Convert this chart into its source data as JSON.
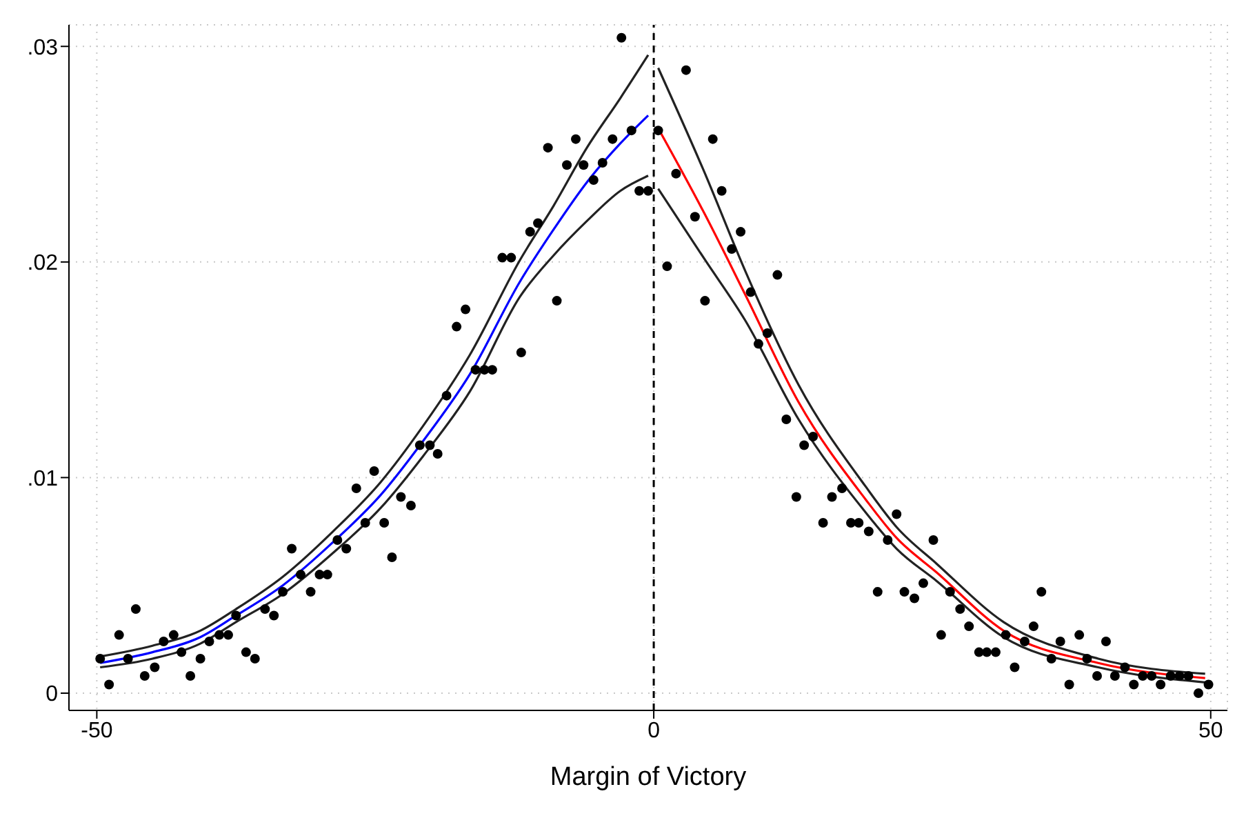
{
  "chart_data": {
    "type": "scatter",
    "xlabel": "Margin of Victory",
    "xlim": [
      -52.5,
      51.5
    ],
    "ylim": [
      -0.0008,
      0.031
    ],
    "xticks": [
      -50,
      0,
      50
    ],
    "yticks": [
      {
        "value": 0,
        "label": "0"
      },
      {
        "value": 0.01,
        "label": ".01"
      },
      {
        "value": 0.02,
        "label": ".02"
      },
      {
        "value": 0.03,
        "label": ".03"
      }
    ],
    "grid": true,
    "ref_lines": [
      {
        "axis": "x",
        "value": 0,
        "label": null,
        "color": "#000000",
        "line_style": "dashed"
      }
    ],
    "series": [
      {
        "color": "#000000",
        "marker": "circle",
        "x": [
          -49.7,
          -48.9,
          -48,
          -47.2,
          -46.5,
          -45.7,
          -44.8,
          -44,
          -43.1,
          -42.4,
          -41.6,
          -40.7,
          -39.9,
          -39,
          -38.2,
          -37.5,
          -36.6,
          -35.8,
          -34.9,
          -34.1,
          -33.3,
          -32.5,
          -31.7,
          -30.8,
          -30,
          -29.3,
          -28.4,
          -27.6,
          -26.7,
          -25.9,
          -25.1,
          -24.2,
          -23.5,
          -22.7,
          -21.8,
          -21,
          -20.1,
          -19.4,
          -18.6,
          -17.7,
          -16.9,
          -16,
          -15.2,
          -14.5,
          -13.6,
          -12.8,
          -11.9,
          -11.1,
          -10.4,
          -9.5,
          -8.7,
          -7.8,
          -7,
          -6.3,
          -5.4,
          -4.6,
          -3.7,
          -2.9,
          -2,
          -1.3,
          -0.5,
          0.4,
          1.2,
          2,
          2.9,
          3.7,
          4.6,
          5.3,
          6.1,
          7,
          7.8,
          8.7,
          9.4,
          10.2,
          11.1,
          11.9,
          12.8,
          13.5,
          14.3,
          15.2,
          16,
          16.9,
          17.7,
          18.4,
          19.3,
          20.1,
          21,
          21.8,
          22.5,
          23.4,
          24.2,
          25.1,
          25.8,
          26.6,
          27.5,
          28.3,
          29.2,
          29.9,
          30.7,
          31.6,
          32.4,
          33.3,
          34.1,
          34.8,
          35.7,
          36.5,
          37.3,
          38.2,
          38.9,
          39.8,
          40.6,
          41.4,
          42.3,
          43.1,
          43.9,
          44.7,
          45.5,
          46.4,
          47.2,
          48,
          48.9,
          49.8
        ],
        "values": [
          0.0016,
          0.0004,
          0.0027,
          0.0016,
          0.0039,
          0.0008,
          0.0012,
          0.0024,
          0.0027,
          0.0019,
          0.0008,
          0.0016,
          0.0024,
          0.0027,
          0.0027,
          0.0036,
          0.0019,
          0.0016,
          0.0039,
          0.0036,
          0.0047,
          0.0067,
          0.0055,
          0.0047,
          0.0055,
          0.0055,
          0.0071,
          0.0067,
          0.0095,
          0.0079,
          0.0103,
          0.0079,
          0.0063,
          0.0091,
          0.0087,
          0.0115,
          0.0115,
          0.0111,
          0.0138,
          0.017,
          0.0178,
          0.015,
          0.015,
          0.015,
          0.0202,
          0.0202,
          0.0158,
          0.0214,
          0.0218,
          0.0253,
          0.0182,
          0.0245,
          0.0257,
          0.0245,
          0.0238,
          0.0246,
          0.0257,
          0.0304,
          0.0261,
          0.0233,
          0.0233,
          0.0261,
          0.0198,
          0.0241,
          0.0289,
          0.0221,
          0.0182,
          0.0257,
          0.0233,
          0.0206,
          0.0214,
          0.0186,
          0.0162,
          0.0167,
          0.0194,
          0.0127,
          0.0091,
          0.0115,
          0.0119,
          0.0079,
          0.0091,
          0.0095,
          0.0079,
          0.0079,
          0.0075,
          0.0047,
          0.0071,
          0.0083,
          0.0047,
          0.0044,
          0.0051,
          0.0071,
          0.0027,
          0.0047,
          0.0039,
          0.0031,
          0.0019,
          0.0019,
          0.0019,
          0.0027,
          0.0012,
          0.0024,
          0.0031,
          0.0047,
          0.0016,
          0.0024,
          0.0004,
          0.0027,
          0.0016,
          0.0008,
          0.0024,
          0.0008,
          0.0012,
          0.0004,
          0.0008,
          0.0008,
          0.0004,
          0.0008,
          0.0008,
          0.0008,
          0,
          0.0004
        ]
      },
      {
        "type": "line",
        "color": "#0000ff",
        "marker": "none",
        "x": [
          -49.7,
          -45,
          -40.7,
          -37.5,
          -33.3,
          -28.8,
          -24.5,
          -20.7,
          -16.5,
          -12,
          -9,
          -6,
          -3,
          -0.5
        ],
        "values": [
          0.0014,
          0.0019,
          0.0026,
          0.0036,
          0.005,
          0.007,
          0.0092,
          0.0117,
          0.0148,
          0.0191,
          0.0215,
          0.0237,
          0.0255,
          0.0268
        ]
      },
      {
        "type": "line",
        "color": "#222222",
        "marker": "none",
        "x": [
          -49.7,
          -45,
          -40.7,
          -37.5,
          -33.3,
          -28.8,
          -24.5,
          -20.7,
          -16.5,
          -12,
          -9,
          -6,
          -3,
          -0.5
        ],
        "values": [
          0.0012,
          0.0016,
          0.0023,
          0.0033,
          0.0046,
          0.0065,
          0.0086,
          0.011,
          0.014,
          0.0184,
          0.0203,
          0.0219,
          0.0233,
          0.024
        ]
      },
      {
        "type": "line",
        "color": "#222222",
        "marker": "none",
        "x": [
          -49.7,
          -45,
          -40.7,
          -37.5,
          -33.3,
          -28.8,
          -24.5,
          -20.7,
          -16.5,
          -12,
          -9,
          -6,
          -3,
          -0.5
        ],
        "values": [
          0.0017,
          0.0022,
          0.0029,
          0.0039,
          0.0054,
          0.0075,
          0.0098,
          0.0124,
          0.0157,
          0.0201,
          0.0226,
          0.0253,
          0.0276,
          0.0296
        ]
      },
      {
        "type": "line",
        "color": "#ff0000",
        "marker": "none",
        "x": [
          0.4,
          4.6,
          8.2,
          13,
          19,
          21.8,
          25.4,
          31.4,
          39.9,
          49.5
        ],
        "values": [
          0.0262,
          0.0222,
          0.0185,
          0.0135,
          0.009,
          0.0072,
          0.0056,
          0.0029,
          0.0014,
          0.0007
        ]
      },
      {
        "type": "line",
        "color": "#222222",
        "marker": "none",
        "x": [
          0.4,
          4.6,
          8.2,
          13,
          19,
          21.8,
          25.4,
          31.4,
          39.9,
          49.5
        ],
        "values": [
          0.0234,
          0.0201,
          0.0173,
          0.0127,
          0.0084,
          0.0067,
          0.0052,
          0.0026,
          0.0012,
          0.0005
        ]
      },
      {
        "type": "line",
        "color": "#222222",
        "marker": "none",
        "x": [
          0.4,
          4.6,
          8.2,
          13,
          19,
          21.8,
          25.4,
          31.4,
          39.9,
          49.5
        ],
        "values": [
          0.029,
          0.0241,
          0.0196,
          0.0143,
          0.0096,
          0.0077,
          0.006,
          0.0033,
          0.0016,
          0.0009
        ]
      }
    ]
  }
}
